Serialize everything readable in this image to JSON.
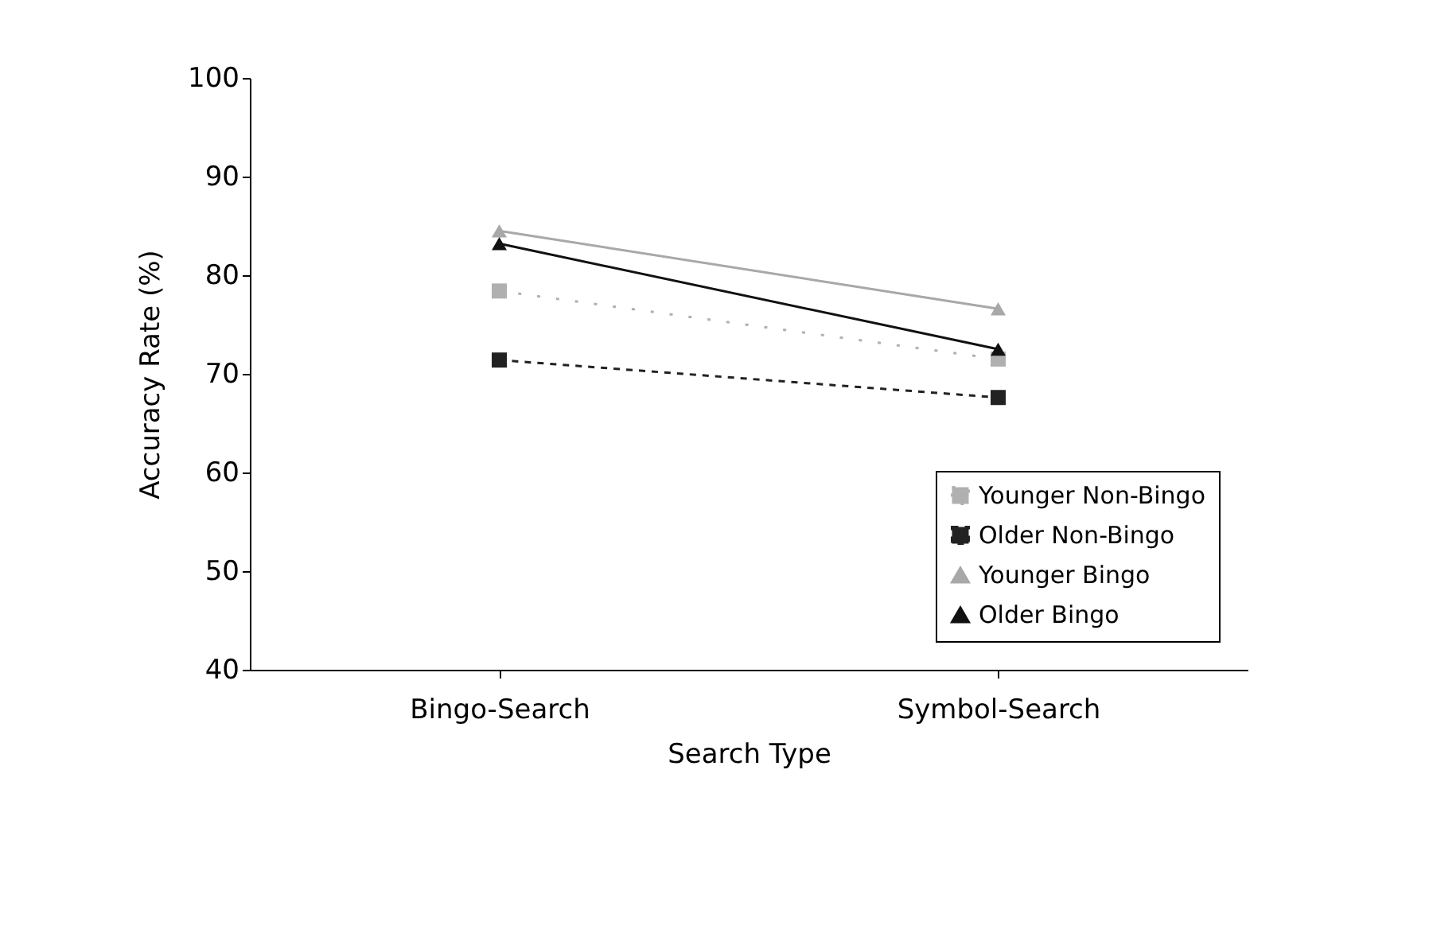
{
  "chart_data": {
    "type": "line",
    "xlabel": "Search Type",
    "ylabel": "Accuracy Rate (%)",
    "categories": [
      "Bingo-Search",
      "Symbol-Search"
    ],
    "ylim": [
      40,
      100
    ],
    "yticks": [
      40,
      50,
      60,
      70,
      80,
      90,
      100
    ],
    "grid": false,
    "legend": "bottom right",
    "series": [
      {
        "name": "Younger Non-Bingo",
        "color": "#b0b0b0",
        "marker": "square",
        "line_style": "dotted",
        "values": [
          78.4,
          71.5
        ]
      },
      {
        "name": "Older Non-Bingo",
        "color": "#222222",
        "marker": "square",
        "line_style": "dashed",
        "values": [
          71.4,
          67.6
        ]
      },
      {
        "name": "Younger Bingo",
        "color": "#a8a8a8",
        "marker": "triangle",
        "line_style": "solid",
        "values": [
          84.5,
          76.6
        ]
      },
      {
        "name": "Older Bingo",
        "color": "#111111",
        "marker": "triangle",
        "line_style": "solid",
        "values": [
          83.2,
          72.5
        ]
      }
    ]
  }
}
